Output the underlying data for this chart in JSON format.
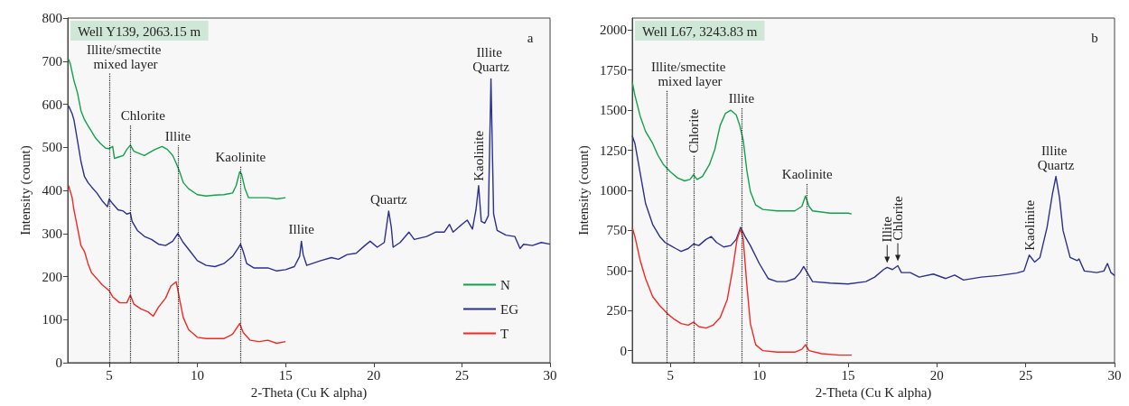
{
  "chart_data": [
    {
      "type": "line",
      "title": "Well Y139, 2063.15 m",
      "xlabel": "2-Theta (Cu K alpha)",
      "ylabel": "Intensity (count)",
      "xlim": [
        2.65,
        30
      ],
      "xticks": [
        5,
        10,
        15,
        20,
        25,
        30
      ],
      "ylim": [
        0,
        800
      ],
      "yticks": [
        0,
        100,
        200,
        300,
        400,
        500,
        600,
        700,
        800
      ],
      "grid": false,
      "legend": "bottom right",
      "series": [
        {
          "name": "N",
          "color": "#13a24b",
          "x": [
            2.7,
            2.8,
            3.0,
            3.2,
            3.4,
            3.6,
            3.8,
            4.0,
            4.2,
            4.5,
            4.8,
            5.0,
            5.2,
            5.3,
            5.5,
            5.8,
            6.0,
            6.2,
            6.4,
            6.8,
            7.0,
            7.3,
            7.6,
            8.0,
            8.3,
            8.6,
            8.8,
            9.0,
            9.2,
            9.5,
            10.0,
            10.5,
            11.0,
            11.5,
            12.0,
            12.2,
            12.4,
            12.5,
            12.7,
            12.9,
            13.5,
            14.0,
            14.5,
            15.0
          ],
          "values": [
            704,
            693,
            655,
            627,
            585,
            564,
            550,
            537,
            523,
            509,
            498,
            497,
            502,
            474,
            477,
            481,
            495,
            505,
            491,
            484,
            481,
            488,
            495,
            502,
            495,
            481,
            463,
            443,
            418,
            404,
            390,
            387,
            389,
            390,
            394,
            411,
            443,
            439,
            404,
            383,
            383,
            383,
            380,
            383
          ]
        },
        {
          "name": "EG",
          "color": "#2b2f8f",
          "x": [
            2.7,
            2.9,
            3.0,
            3.2,
            3.4,
            3.6,
            3.8,
            4.0,
            4.3,
            4.6,
            4.9,
            5.0,
            5.2,
            5.5,
            5.8,
            6.0,
            6.2,
            6.3,
            6.6,
            7.0,
            7.4,
            7.8,
            8.2,
            8.6,
            8.9,
            9.2,
            9.6,
            10.0,
            10.5,
            11.0,
            11.5,
            12.0,
            12.3,
            12.45,
            12.6,
            12.8,
            13.2,
            14.0,
            14.5,
            15.0,
            15.5,
            15.8,
            15.9,
            16.0,
            16.2,
            17.0,
            17.6,
            18.0,
            18.5,
            19.0,
            19.5,
            19.8,
            20.2,
            20.6,
            20.85,
            21.0,
            21.1,
            21.5,
            22.0,
            22.3,
            23.0,
            23.5,
            24.0,
            24.3,
            24.5,
            25.0,
            25.3,
            25.6,
            25.8,
            25.95,
            26.1,
            26.3,
            26.5,
            26.65,
            26.8,
            27.0,
            27.5,
            28.0,
            28.3,
            28.5,
            29.0,
            29.5,
            30.0
          ],
          "values": [
            596,
            578,
            564,
            516,
            467,
            432,
            418,
            408,
            394,
            376,
            362,
            380,
            369,
            355,
            352,
            345,
            348,
            328,
            307,
            293,
            286,
            275,
            272,
            282,
            300,
            279,
            258,
            237,
            226,
            223,
            230,
            247,
            265,
            275,
            258,
            230,
            220,
            220,
            213,
            216,
            223,
            247,
            282,
            251,
            226,
            237,
            244,
            240,
            251,
            254,
            272,
            282,
            268,
            279,
            352,
            314,
            268,
            279,
            303,
            286,
            293,
            303,
            303,
            321,
            303,
            321,
            331,
            310,
            355,
            411,
            328,
            324,
            341,
            659,
            345,
            307,
            296,
            293,
            265,
            275,
            272,
            279,
            275
          ]
        },
        {
          "name": "T",
          "color": "#ee2a24",
          "x": [
            2.7,
            2.9,
            3.0,
            3.2,
            3.4,
            3.6,
            3.8,
            4.0,
            4.3,
            4.6,
            5.0,
            5.2,
            5.6,
            6.0,
            6.2,
            6.4,
            6.8,
            7.2,
            7.5,
            7.8,
            8.2,
            8.5,
            8.8,
            9.0,
            9.2,
            9.5,
            10.0,
            10.5,
            11.0,
            11.5,
            12.0,
            12.4,
            12.6,
            13.0,
            13.5,
            14.0,
            14.5,
            15.0
          ],
          "values": [
            411,
            383,
            355,
            314,
            272,
            258,
            230,
            209,
            195,
            181,
            167,
            153,
            139,
            139,
            157,
            136,
            125,
            118,
            108,
            129,
            150,
            178,
            188,
            146,
            105,
            77,
            59,
            56,
            56,
            56,
            66,
            91,
            70,
            52,
            49,
            52,
            45,
            49
          ]
        }
      ],
      "ref_lines": [
        {
          "axis": "x",
          "value": 5,
          "label": "Illite/smectite mixed layer",
          "line_style": "dotted"
        },
        {
          "axis": "x",
          "value": 6.2,
          "label": "Chlorite",
          "line_style": "dotted"
        },
        {
          "axis": "x",
          "value": 8.9,
          "label": "Illite",
          "line_style": "dotted"
        },
        {
          "axis": "x",
          "value": 12.45,
          "label": "Kaolinite",
          "line_style": "dotted"
        }
      ],
      "annotations": [
        "a",
        {
          "text": "Illite",
          "x": 15.9,
          "y": 282
        },
        {
          "text": "Quartz",
          "x": 20.85,
          "y": 352
        },
        {
          "text": "Kaolinite",
          "x": 25.95,
          "y": 411
        },
        {
          "text": "Illite Quartz",
          "x": 26.65,
          "y": 659
        }
      ]
    },
    {
      "type": "line",
      "title": "Well L67, 3243.83 m",
      "xlabel": "2-Theta (Cu K alpha)",
      "ylabel": "Intensity (count)",
      "xlim": [
        2.85,
        30
      ],
      "xticks": [
        5,
        10,
        15,
        20,
        25,
        30
      ],
      "ylim": [
        -75,
        2075
      ],
      "yticks": [
        0,
        250,
        500,
        750,
        1000,
        1250,
        1500,
        1750,
        2000
      ],
      "grid": false,
      "series": [
        {
          "color": "#13a24b",
          "x": [
            2.85,
            3.0,
            3.3,
            3.6,
            4.0,
            4.3,
            4.6,
            5.0,
            5.4,
            5.8,
            6.1,
            6.3,
            6.5,
            6.8,
            7.2,
            7.5,
            7.8,
            8.1,
            8.4,
            8.7,
            8.9,
            9.1,
            9.3,
            9.5,
            9.8,
            10.2,
            11.0,
            11.5,
            12.0,
            12.4,
            12.6,
            12.8,
            13.0,
            14.0,
            15.0,
            15.2
          ],
          "values": [
            1678,
            1593,
            1462,
            1368,
            1293,
            1218,
            1162,
            1115,
            1078,
            1059,
            1068,
            1097,
            1068,
            1087,
            1162,
            1256,
            1406,
            1481,
            1500,
            1471,
            1406,
            1312,
            1125,
            993,
            909,
            881,
            872,
            872,
            872,
            900,
            965,
            900,
            872,
            858,
            858,
            853
          ]
        },
        {
          "color": "#2b2f8f",
          "x": [
            2.85,
            3.0,
            3.3,
            3.6,
            4.0,
            4.4,
            4.7,
            5.0,
            5.3,
            5.6,
            6.0,
            6.3,
            6.6,
            7.0,
            7.3,
            7.6,
            8.0,
            8.4,
            8.7,
            8.95,
            9.2,
            9.5,
            10.0,
            10.5,
            11.0,
            11.5,
            12.0,
            12.3,
            12.5,
            12.7,
            13.0,
            14.0,
            15.0,
            16.0,
            16.5,
            17.0,
            17.2,
            17.5,
            17.8,
            18.0,
            18.5,
            19.0,
            19.8,
            20.5,
            21.0,
            21.5,
            22.5,
            23.5,
            24.5,
            24.9,
            25.2,
            25.5,
            25.8,
            26.2,
            26.5,
            26.7,
            26.9,
            27.1,
            27.5,
            27.9,
            28.0,
            28.3,
            29.0,
            29.4,
            29.6,
            29.8,
            30.0
          ],
          "values": [
            1340,
            1293,
            1106,
            918,
            787,
            712,
            675,
            656,
            637,
            619,
            637,
            665,
            656,
            694,
            712,
            675,
            647,
            656,
            694,
            769,
            712,
            656,
            544,
            450,
            431,
            431,
            450,
            487,
            525,
            487,
            431,
            422,
            416,
            431,
            459,
            506,
            519,
            506,
            530,
            487,
            487,
            459,
            478,
            450,
            472,
            441,
            459,
            469,
            484,
            497,
            596,
            553,
            581,
            769,
            975,
            1087,
            956,
            750,
            581,
            562,
            572,
            497,
            487,
            497,
            544,
            487,
            469
          ]
        },
        {
          "color": "#ee2a24",
          "x": [
            2.85,
            3.0,
            3.3,
            3.6,
            4.0,
            4.4,
            4.8,
            5.2,
            5.6,
            6.0,
            6.3,
            6.6,
            7.0,
            7.4,
            7.8,
            8.2,
            8.5,
            8.75,
            8.95,
            9.1,
            9.3,
            9.5,
            9.8,
            10.2,
            11.0,
            12.0,
            12.4,
            12.6,
            12.8,
            13.5,
            14.5,
            15.0,
            15.2
          ],
          "values": [
            768,
            712,
            562,
            450,
            337,
            281,
            234,
            197,
            169,
            159,
            178,
            150,
            141,
            159,
            206,
            319,
            506,
            694,
            759,
            694,
            412,
            169,
            37,
            0,
            -9,
            -9,
            9,
            37,
            0,
            -19,
            -28,
            -28,
            -28
          ]
        }
      ],
      "ref_lines": [
        {
          "axis": "x",
          "value": 4.8,
          "label": "Illite/smectite mixed layer",
          "line_style": "dotted"
        },
        {
          "axis": "x",
          "value": 6.3,
          "label": "Chlorite",
          "line_style": "dotted"
        },
        {
          "axis": "x",
          "value": 9.0,
          "label": "Illite",
          "line_style": "dotted"
        },
        {
          "axis": "x",
          "value": 12.7,
          "label": "Kaolinite",
          "line_style": "dotted"
        }
      ],
      "annotations": [
        "b",
        {
          "text": "Illite",
          "x": 17.2,
          "y": 519
        },
        {
          "text": "Chlorite",
          "x": 17.8,
          "y": 530
        },
        {
          "text": "Kaolinite",
          "x": 25.2,
          "y": 596
        },
        {
          "text": "Illite Quartz",
          "x": 26.7,
          "y": 1087
        }
      ]
    }
  ]
}
